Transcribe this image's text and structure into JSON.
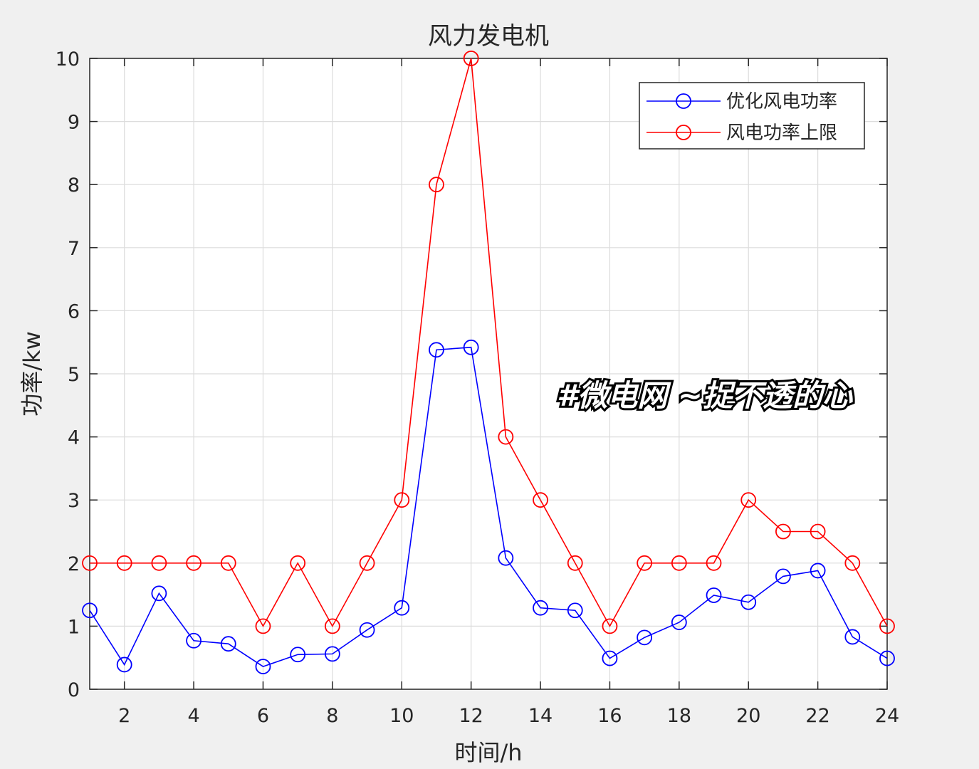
{
  "chart_data": {
    "type": "line",
    "title": "风力发电机",
    "xlabel": "时间/h",
    "ylabel": "功率/kw",
    "xlim": [
      1,
      24
    ],
    "ylim": [
      0,
      10
    ],
    "xticks": [
      2,
      4,
      6,
      8,
      10,
      12,
      14,
      16,
      18,
      20,
      22,
      24
    ],
    "yticks": [
      0,
      1,
      2,
      3,
      4,
      5,
      6,
      7,
      8,
      9,
      10
    ],
    "grid": true,
    "legend_position": "top-right",
    "x": [
      1,
      2,
      3,
      4,
      5,
      6,
      7,
      8,
      9,
      10,
      11,
      12,
      13,
      14,
      15,
      16,
      17,
      18,
      19,
      20,
      21,
      22,
      23,
      24
    ],
    "series": [
      {
        "name": "优化风电功率",
        "color": "#0000ff",
        "marker": "circle",
        "values": [
          1.25,
          0.39,
          1.52,
          0.77,
          0.72,
          0.36,
          0.55,
          0.56,
          0.94,
          1.29,
          5.38,
          5.42,
          2.08,
          1.29,
          1.25,
          0.49,
          0.82,
          1.06,
          1.49,
          1.38,
          1.79,
          1.88,
          0.83,
          0.49
        ]
      },
      {
        "name": "风电功率上限",
        "color": "#ff0000",
        "marker": "circle",
        "values": [
          2,
          2,
          2,
          2,
          2,
          1,
          2,
          1,
          2,
          3,
          8,
          10,
          4,
          3,
          2,
          1,
          2,
          2,
          2,
          3,
          2.5,
          2.5,
          2,
          1
        ]
      }
    ]
  },
  "watermark": "#微电网 ~捉不透的心"
}
